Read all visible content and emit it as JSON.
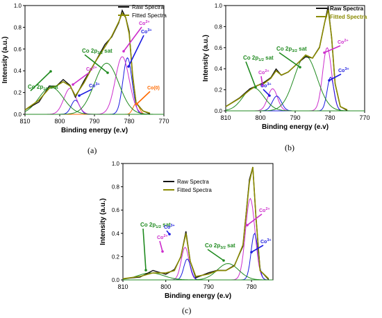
{
  "captions": {
    "a": "(a)",
    "b": "(b)",
    "c": "(c)"
  },
  "colors": {
    "raw": "#111111",
    "fitted": "#8a8a00",
    "co3": "#1a1ae0",
    "co2": "#cc2ccc",
    "sat": "#1f8a1f",
    "co0": "#ff6a00"
  },
  "chart_data": [
    {
      "id": "a",
      "type": "line",
      "xlabel": "Binding energy (e.v)",
      "ylabel": "Intensity (a.u.)",
      "x_reversed": true,
      "xlim": [
        810,
        770
      ],
      "ylim": [
        0,
        1.0
      ],
      "xticks": [
        "810",
        "800",
        "790",
        "780",
        "770"
      ],
      "yticks": [
        "0.0",
        "0.2",
        "0.4",
        "0.6",
        "0.8",
        "1.0"
      ],
      "legend": {
        "position": "top-right",
        "entries": [
          "Raw Spectra",
          "Fitted Spectra"
        ]
      },
      "series": [
        {
          "name": "Raw Spectra",
          "x": [
            810,
            806,
            803,
            801,
            799,
            797,
            795.5,
            793,
            790,
            787,
            785,
            783,
            782,
            781,
            780,
            779,
            778,
            776,
            774
          ],
          "y": [
            0.04,
            0.12,
            0.25,
            0.27,
            0.31,
            0.27,
            0.16,
            0.3,
            0.48,
            0.63,
            0.72,
            0.84,
            0.95,
            0.9,
            0.75,
            0.35,
            0.1,
            0.03,
            0.01
          ]
        },
        {
          "name": "Fitted Spectra",
          "x": [
            810,
            806,
            803,
            801,
            799,
            797,
            795.5,
            793,
            790,
            787,
            785,
            783,
            782,
            781,
            780,
            779,
            778,
            776,
            774
          ],
          "y": [
            0.04,
            0.13,
            0.24,
            0.26,
            0.3,
            0.26,
            0.17,
            0.29,
            0.47,
            0.62,
            0.72,
            0.85,
            0.93,
            0.89,
            0.74,
            0.36,
            0.1,
            0.03,
            0.01
          ]
        }
      ],
      "peaks": [
        {
          "color": "co3",
          "center": 780.5,
          "height": 0.52,
          "width": 1.3
        },
        {
          "color": "co2",
          "center": 782.0,
          "height": 0.53,
          "width": 2.0
        },
        {
          "color": "co0",
          "center": 778.0,
          "height": 0.1,
          "width": 0.9
        },
        {
          "color": "co3",
          "center": 795.5,
          "height": 0.13,
          "width": 1.2
        },
        {
          "color": "co2",
          "center": 797.0,
          "height": 0.24,
          "width": 1.8
        },
        {
          "color": "sat",
          "center": 802.5,
          "height": 0.25,
          "width": 3.5
        },
        {
          "color": "sat",
          "center": 786.5,
          "height": 0.47,
          "width": 3.5
        }
      ],
      "annotations": [
        {
          "label": "Co 2p",
          "sub": "1/2",
          "suffix": " sat",
          "color": "sat"
        },
        {
          "label": "Co 2p",
          "sub": "3/2",
          "suffix": " sat",
          "color": "sat"
        },
        {
          "label": "Co",
          "sup": "2+",
          "color": "co2"
        },
        {
          "label": "Co",
          "sup": "3+",
          "color": "co3"
        },
        {
          "label": "Co",
          "sup": "2+",
          "color": "co2"
        },
        {
          "label": "Co",
          "sup": "3+",
          "color": "co3"
        },
        {
          "label": "Co(0)",
          "color": "co0"
        }
      ]
    },
    {
      "id": "b",
      "type": "line",
      "xlabel": "Binding energy (e.v)",
      "ylabel": "Intensity (a.u.)",
      "x_reversed": true,
      "xlim": [
        810,
        770
      ],
      "ylim": [
        0,
        1.0
      ],
      "xticks": [
        "810",
        "800",
        "790",
        "780",
        "770"
      ],
      "yticks": [
        "0.0",
        "0.2",
        "0.4",
        "0.6",
        "0.8",
        "1.0"
      ],
      "legend": {
        "position": "top-right",
        "entries": [
          "Raw Spectra",
          "Fitted Spectra"
        ]
      },
      "series": [
        {
          "name": "Raw Spectra",
          "x": [
            810,
            806,
            803,
            801,
            799,
            797,
            795.5,
            794,
            792,
            789,
            787,
            785,
            783,
            781.5,
            780.5,
            779.5,
            778.5,
            777,
            775
          ],
          "y": [
            0.04,
            0.13,
            0.2,
            0.25,
            0.26,
            0.32,
            0.4,
            0.33,
            0.38,
            0.45,
            0.52,
            0.5,
            0.6,
            0.85,
            0.98,
            0.7,
            0.25,
            0.04,
            0.01
          ]
        },
        {
          "name": "Fitted Spectra",
          "x": [
            810,
            806,
            803,
            801,
            799,
            797,
            795.5,
            794,
            792,
            789,
            787,
            785,
            783,
            781.5,
            780.5,
            779.5,
            778.5,
            777,
            775
          ],
          "y": [
            0.04,
            0.12,
            0.2,
            0.24,
            0.26,
            0.31,
            0.38,
            0.34,
            0.37,
            0.46,
            0.53,
            0.5,
            0.6,
            0.84,
            0.96,
            0.7,
            0.26,
            0.04,
            0.01
          ]
        }
      ],
      "peaks": [
        {
          "color": "co2",
          "center": 780.8,
          "height": 0.6,
          "width": 1.3
        },
        {
          "color": "co3",
          "center": 779.8,
          "height": 0.32,
          "width": 1.0
        },
        {
          "color": "co2",
          "center": 796.5,
          "height": 0.21,
          "width": 1.4
        },
        {
          "color": "co3",
          "center": 795.3,
          "height": 0.14,
          "width": 1.3
        },
        {
          "color": "sat",
          "center": 802.0,
          "height": 0.22,
          "width": 3.0
        },
        {
          "color": "sat",
          "center": 787.0,
          "height": 0.52,
          "width": 3.3
        }
      ],
      "annotations": [
        {
          "label": "Co 2p",
          "sub": "1/2",
          "suffix": " sat",
          "color": "sat"
        },
        {
          "label": "Co 2p",
          "sub": "3/2",
          "suffix": " sat",
          "color": "sat"
        },
        {
          "label": "Co",
          "sup": "2+",
          "color": "co2"
        },
        {
          "label": "Co",
          "sup": "3+",
          "color": "co3"
        },
        {
          "label": "Co",
          "sup": "2+",
          "color": "co2"
        },
        {
          "label": "Co",
          "sup": "3+",
          "color": "co3"
        }
      ]
    },
    {
      "id": "c",
      "type": "line",
      "xlabel": "Binding energy (e.v)",
      "ylabel": "Intensity (a.u.)",
      "x_reversed": true,
      "xlim": [
        810,
        775
      ],
      "ylim": [
        0,
        1.0
      ],
      "xticks": [
        "810",
        "800",
        "790",
        "780"
      ],
      "yticks": [
        "0.0",
        "0.2",
        "0.4",
        "0.6",
        "0.8",
        "1.0"
      ],
      "legend": {
        "position": "top-right",
        "entries": [
          "Raw Spectra",
          "Fitted Spectra"
        ]
      },
      "series": [
        {
          "name": "Raw Spectra",
          "x": [
            810,
            806,
            803,
            800,
            798,
            796.5,
            795.3,
            794.3,
            793,
            790,
            788,
            786,
            784,
            782,
            780.5,
            779.7,
            779,
            778,
            776
          ],
          "y": [
            0.01,
            0.03,
            0.07,
            0.06,
            0.08,
            0.2,
            0.42,
            0.15,
            0.03,
            0.05,
            0.09,
            0.08,
            0.12,
            0.3,
            0.85,
            0.98,
            0.55,
            0.08,
            0.01
          ]
        },
        {
          "name": "Fitted Spectra",
          "x": [
            810,
            806,
            803,
            800,
            798,
            796.5,
            795.3,
            794.3,
            793,
            790,
            788,
            786,
            784,
            782,
            780.5,
            779.7,
            779,
            778,
            776
          ],
          "y": [
            0.01,
            0.03,
            0.06,
            0.06,
            0.08,
            0.2,
            0.4,
            0.16,
            0.03,
            0.05,
            0.08,
            0.08,
            0.12,
            0.3,
            0.84,
            0.97,
            0.56,
            0.08,
            0.01
          ]
        }
      ],
      "peaks": [
        {
          "color": "co2",
          "center": 780.3,
          "height": 0.7,
          "width": 1.1
        },
        {
          "color": "co3",
          "center": 779.3,
          "height": 0.4,
          "width": 0.8
        },
        {
          "color": "co2",
          "center": 795.5,
          "height": 0.28,
          "width": 0.9
        },
        {
          "color": "co3",
          "center": 795.0,
          "height": 0.18,
          "width": 0.8
        },
        {
          "color": "sat",
          "center": 803.5,
          "height": 0.06,
          "width": 3.0
        },
        {
          "color": "sat",
          "center": 785.5,
          "height": 0.14,
          "width": 2.5
        }
      ],
      "annotations": [
        {
          "label": "Co 2p",
          "sub": "1/2",
          "suffix": " sat",
          "color": "sat"
        },
        {
          "label": "Co 2p",
          "sub": "3/2",
          "suffix": " sat",
          "color": "sat"
        },
        {
          "label": "Co",
          "sup": "2+",
          "color": "co2"
        },
        {
          "label": "Co",
          "sup": "3+",
          "color": "co3"
        },
        {
          "label": "Co",
          "sup": "2+",
          "color": "co2"
        },
        {
          "label": "Co",
          "sup": "3+",
          "color": "co3"
        }
      ]
    }
  ]
}
